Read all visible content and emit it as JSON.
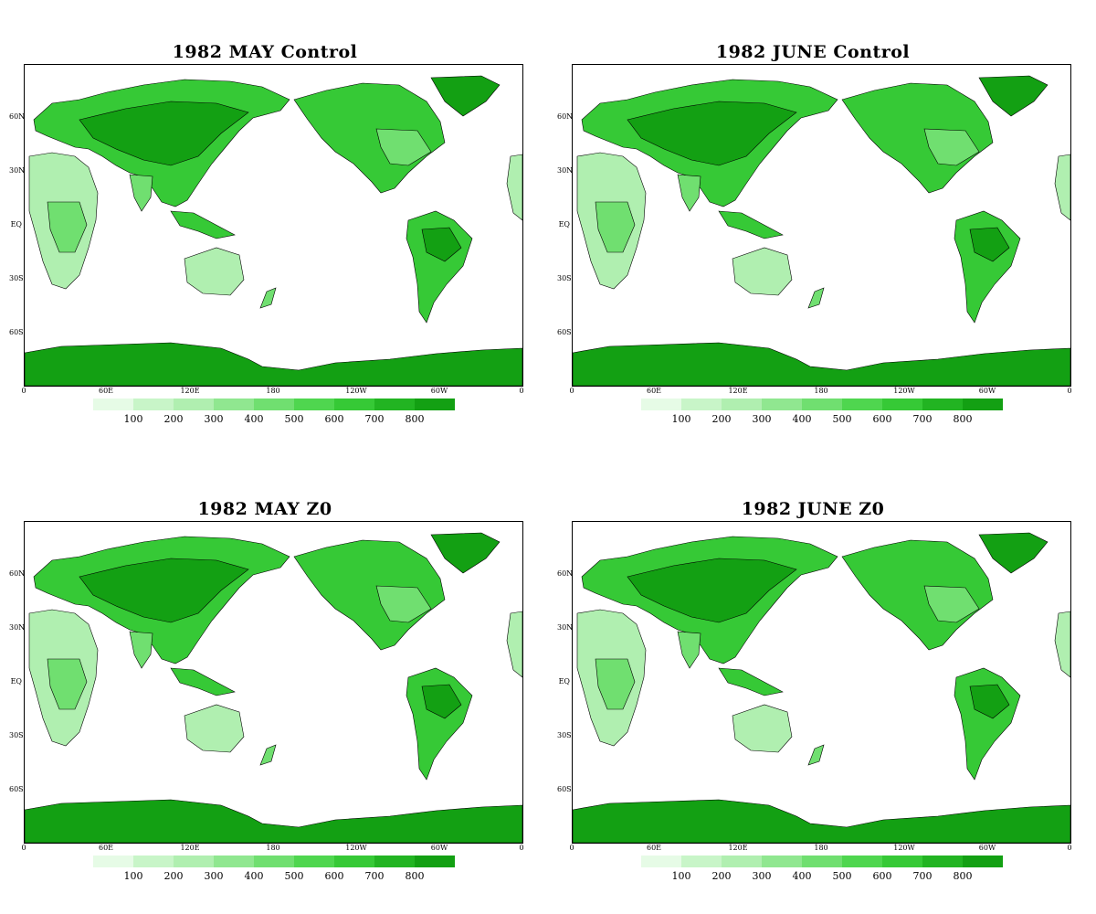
{
  "panels": [
    {
      "title": "1982 MAY Control"
    },
    {
      "title": "1982 JUNE Control"
    },
    {
      "title": "1982 MAY Z0"
    },
    {
      "title": "1982 JUNE Z0"
    }
  ],
  "lat_labels": [
    "60N",
    "30N",
    "EQ",
    "30S",
    "60S"
  ],
  "lon_labels": [
    "0",
    "60E",
    "120E",
    "180",
    "120W",
    "60W",
    "0"
  ],
  "colorbar": {
    "colors": [
      "#e6fbe6",
      "#c8f5c8",
      "#b0efb0",
      "#90e790",
      "#70df70",
      "#4fd64f",
      "#36c936",
      "#22b422",
      "#13a013"
    ],
    "ticks": [
      "100",
      "200",
      "300",
      "400",
      "500",
      "600",
      "700",
      "800"
    ]
  },
  "colors": {
    "land_dark": "#13a013",
    "land_mid": "#36c936",
    "land_light": "#70df70",
    "land_pale": "#b0efb0",
    "coast": "#000000"
  }
}
